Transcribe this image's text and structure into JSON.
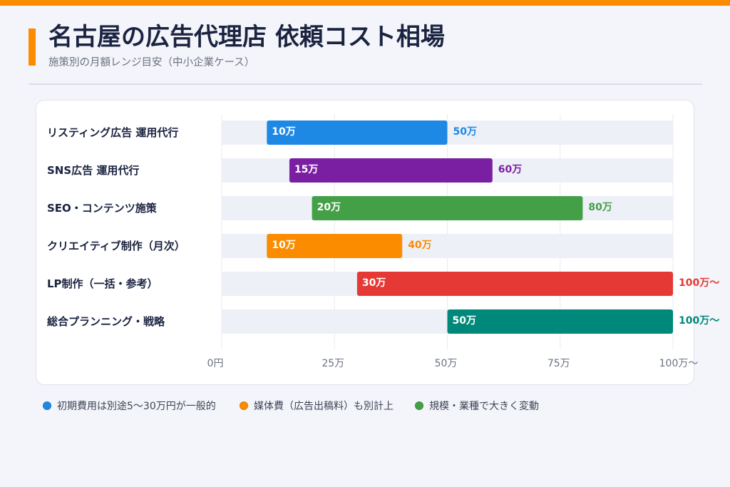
{
  "colors": {
    "accent": "#fb8c00",
    "background": "#f4f5fa",
    "title_text": "#1a2340",
    "track": "#edf0f7",
    "gridline": "#e9ebf3"
  },
  "chart_data": {
    "type": "bar",
    "orientation": "horizontal",
    "title": "名古屋の広告代理店 依頼コスト相場",
    "subtitle": "施策別の月額レンジ目安（中小企業ケース）",
    "xlabel": "",
    "ylabel": "",
    "categories": [
      "リスティング広告 運用代行",
      "SNS広告 運用代行",
      "SEO・コンテンツ施策",
      "クリエイティブ制作（月次）",
      "LP制作（一括・参考）",
      "総合プランニング・戦略"
    ],
    "ranges": [
      {
        "low": 10,
        "high": 50,
        "low_label": "10万",
        "high_label": "50万",
        "color": "#1e88e5"
      },
      {
        "low": 15,
        "high": 60,
        "low_label": "15万",
        "high_label": "60万",
        "color": "#7b1fa2"
      },
      {
        "low": 20,
        "high": 80,
        "low_label": "20万",
        "high_label": "80万",
        "color": "#43a047"
      },
      {
        "low": 10,
        "high": 40,
        "low_label": "10万",
        "high_label": "40万",
        "color": "#fb8c00"
      },
      {
        "low": 30,
        "high": 100,
        "low_label": "30万",
        "high_label": "100万〜",
        "color": "#e53935"
      },
      {
        "low": 50,
        "high": 100,
        "low_label": "50万",
        "high_label": "100万〜",
        "color": "#00897b"
      }
    ],
    "xlim": [
      0,
      100
    ],
    "x_ticks": [
      0,
      25,
      50,
      75,
      100
    ],
    "x_tick_labels": [
      "0円",
      "25万",
      "50万",
      "75万",
      "100万〜"
    ],
    "grid": true
  },
  "footnotes": [
    {
      "text": "初期費用は別途5〜30万円が一般的",
      "color": "#1e88e5"
    },
    {
      "text": "媒体費（広告出稿料）も別計上",
      "color": "#fb8c00"
    },
    {
      "text": "規模・業種で大きく変動",
      "color": "#43a047"
    }
  ]
}
